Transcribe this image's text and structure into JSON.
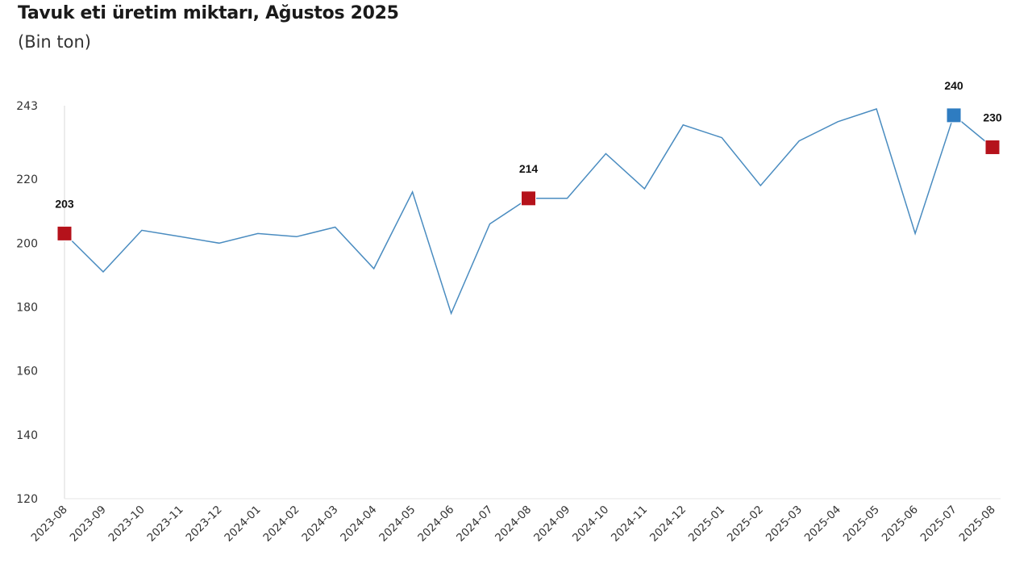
{
  "chart_data": {
    "type": "line",
    "title": "Tavuk eti üretim miktarı, Ağustos 2025",
    "subtitle": "(Bin ton)",
    "xlabel": "",
    "ylabel": "",
    "ylim": [
      120,
      243
    ],
    "yticks": [
      120,
      140,
      160,
      180,
      200,
      220,
      243
    ],
    "grid": false,
    "categories": [
      "2023-08",
      "2023-09",
      "2023-10",
      "2023-11",
      "2023-12",
      "2024-01",
      "2024-02",
      "2024-03",
      "2024-04",
      "2024-05",
      "2024-06",
      "2024-07",
      "2024-08",
      "2024-09",
      "2024-10",
      "2024-11",
      "2024-12",
      "2025-01",
      "2025-02",
      "2025-03",
      "2025-04",
      "2025-05",
      "2025-06",
      "2025-07",
      "2025-08"
    ],
    "series": [
      {
        "name": "Tavuk eti üretim miktarı",
        "color": "#4a8cc0",
        "values": [
          203,
          191,
          204,
          202,
          200,
          203,
          202,
          205,
          192,
          216,
          178,
          206,
          214,
          214,
          228,
          217,
          237,
          233,
          218,
          232,
          238,
          242,
          203,
          240,
          230
        ]
      }
    ],
    "highlighted_points": [
      {
        "index": 0,
        "label": "203",
        "color": "#b5121b"
      },
      {
        "index": 12,
        "label": "214",
        "color": "#b5121b"
      },
      {
        "index": 23,
        "label": "240",
        "color": "#2e7cc1"
      },
      {
        "index": 24,
        "label": "230",
        "color": "#b5121b"
      }
    ]
  }
}
